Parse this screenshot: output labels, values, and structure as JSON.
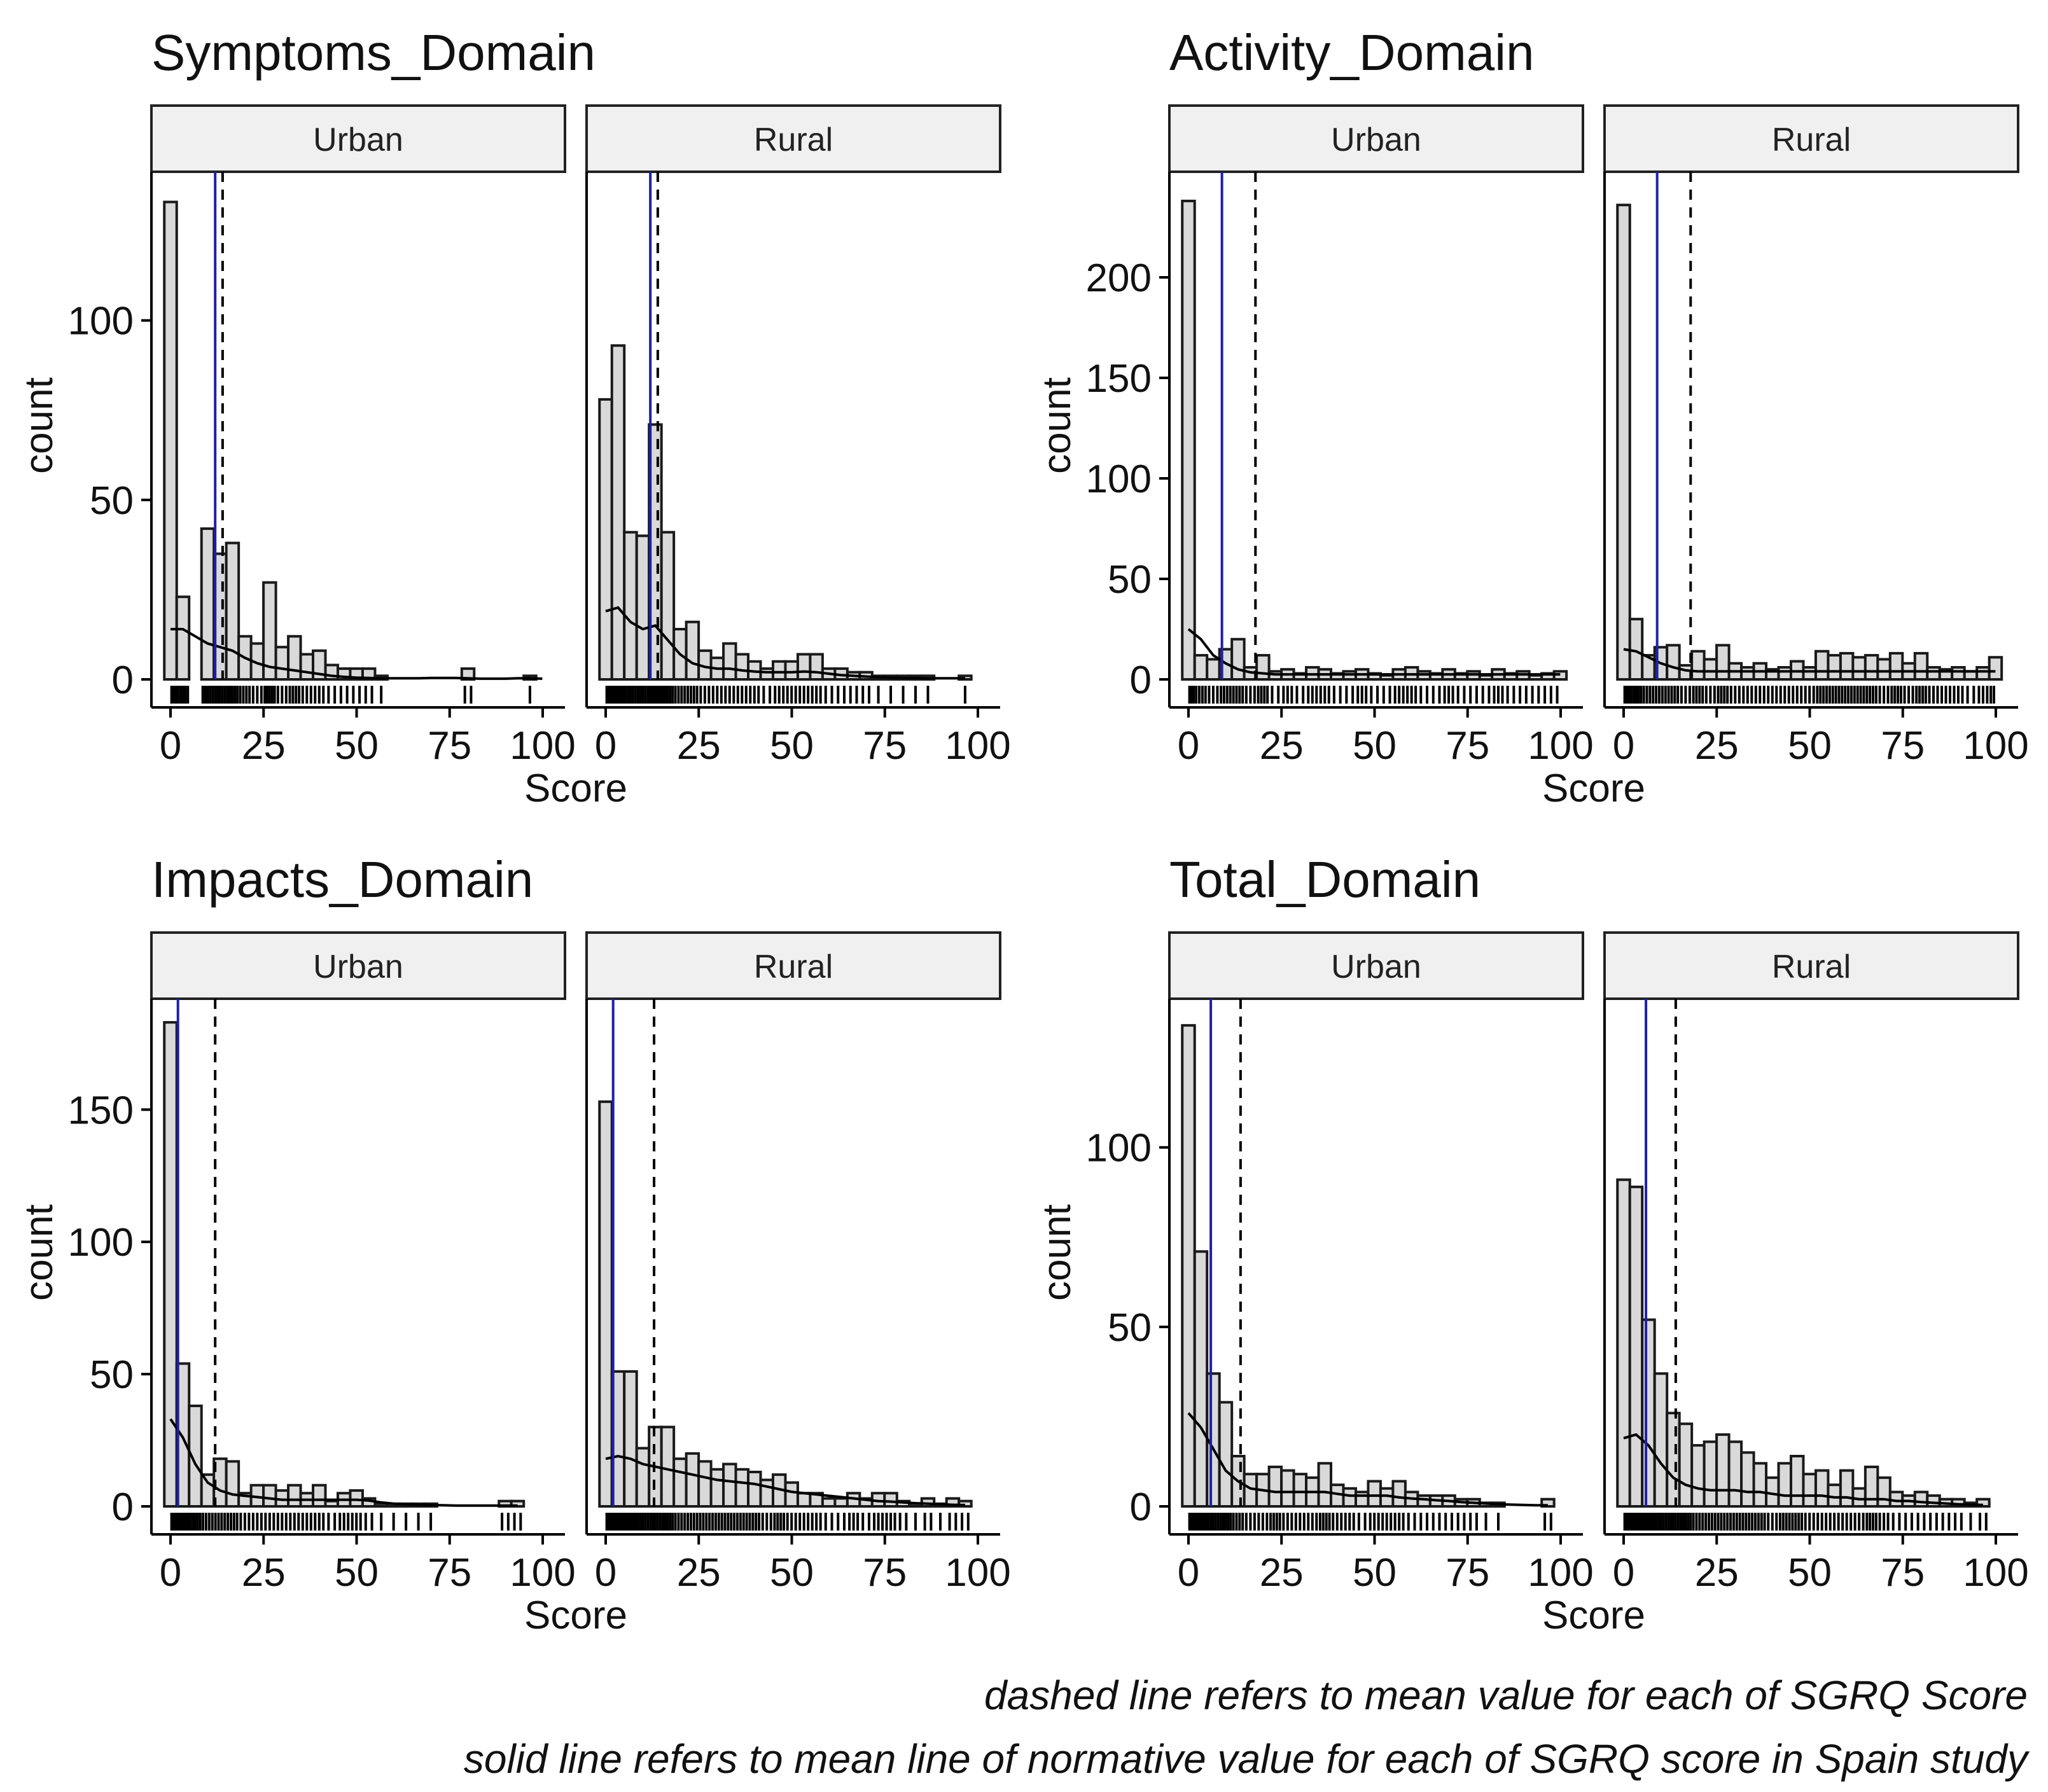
{
  "chart_data": [
    {
      "type": "bar",
      "title": "Symptoms_Domain",
      "xlabel": "Score",
      "ylabel": "count",
      "ylim": [
        0,
        140
      ],
      "yticks": [
        0,
        50,
        100
      ],
      "xticks": [
        0,
        25,
        50,
        75,
        100
      ],
      "panels": [
        {
          "label": "Urban",
          "bin_width": 3.33,
          "counts": [
            133,
            23,
            0,
            42,
            35,
            38,
            12,
            10,
            27,
            9,
            12,
            7,
            8,
            4,
            3,
            3,
            3,
            1,
            0,
            0,
            0,
            0,
            0,
            0,
            3,
            0,
            0,
            0,
            0,
            1,
            0
          ],
          "density": [
            14,
            14,
            12,
            10,
            9,
            8,
            6,
            4.5,
            3.5,
            3,
            2.5,
            2,
            1.5,
            1,
            0.7,
            0.5,
            0.4,
            0.3,
            0.3,
            0.3,
            0.3,
            0.4,
            0.4,
            0.4,
            0.3,
            0.2,
            0.2,
            0.2,
            0.3,
            0.3,
            0.2
          ],
          "norm_mean": 12,
          "mean": 14
        },
        {
          "label": "Rural",
          "bin_width": 3.33,
          "counts": [
            78,
            93,
            41,
            40,
            71,
            41,
            14,
            16,
            8,
            6,
            10,
            7,
            5,
            3,
            5,
            5,
            7,
            7,
            3,
            3,
            2,
            2,
            1,
            1,
            1,
            1,
            1,
            0,
            0,
            1
          ],
          "density": [
            19,
            20,
            16,
            14,
            15,
            11,
            7,
            4.5,
            3.5,
            3,
            3,
            2.5,
            2.2,
            2,
            2,
            2,
            2.2,
            2,
            1.6,
            1.2,
            1,
            0.8,
            0.6,
            0.5,
            0.4,
            0.4,
            0.3,
            0.3,
            0.3,
            0.3
          ],
          "norm_mean": 12,
          "mean": 14
        }
      ]
    },
    {
      "type": "bar",
      "title": "Activity_Domain",
      "xlabel": "Score",
      "ylabel": "count",
      "ylim": [
        0,
        250
      ],
      "yticks": [
        0,
        50,
        100,
        150,
        200
      ],
      "xticks": [
        0,
        25,
        50,
        75,
        100
      ],
      "panels": [
        {
          "label": "Urban",
          "bin_width": 3.33,
          "counts": [
            238,
            12,
            10,
            15,
            20,
            6,
            12,
            4,
            5,
            3,
            6,
            5,
            3,
            4,
            5,
            3,
            2,
            5,
            6,
            4,
            3,
            5,
            3,
            4,
            2,
            5,
            3,
            4,
            2,
            3,
            4
          ],
          "density": [
            25,
            20,
            12,
            8,
            5,
            3.5,
            3,
            2.5,
            2.5,
            2.5,
            2.5,
            2.5,
            2.5,
            2.5,
            2.5,
            2.5,
            2.5,
            2.5,
            2.5,
            2.5,
            2.5,
            2.5,
            2.5,
            2.5,
            2.5,
            2.5,
            2.5,
            2.5,
            2.5,
            2.5,
            2.5
          ],
          "norm_mean": 9,
          "mean": 18
        },
        {
          "label": "Rural",
          "bin_width": 3.33,
          "counts": [
            236,
            30,
            12,
            16,
            17,
            7,
            14,
            10,
            17,
            8,
            6,
            8,
            5,
            6,
            9,
            6,
            14,
            12,
            13,
            11,
            12,
            10,
            13,
            8,
            13,
            6,
            5,
            6,
            4,
            6,
            11
          ],
          "density": [
            15,
            14,
            11,
            8,
            6,
            4.5,
            4,
            4,
            4,
            4,
            4,
            4,
            4,
            4,
            4,
            4,
            4,
            4,
            4,
            4,
            4,
            4,
            4,
            4,
            4,
            4,
            4,
            4,
            4,
            4,
            4
          ],
          "norm_mean": 9,
          "mean": 18
        }
      ]
    },
    {
      "type": "bar",
      "title": "Impacts_Domain",
      "xlabel": "Score",
      "ylabel": "count",
      "ylim": [
        0,
        190
      ],
      "yticks": [
        0,
        50,
        100,
        150
      ],
      "xticks": [
        0,
        25,
        50,
        75,
        100
      ],
      "xticklabels": [
        "0",
        "25",
        "50",
        "75",
        "100"
      ],
      "panels": [
        {
          "label": "Urban",
          "bin_width": 3.33,
          "counts": [
            183,
            54,
            38,
            12,
            18,
            17,
            5,
            8,
            8,
            6,
            8,
            5,
            8,
            2,
            5,
            6,
            3,
            1,
            1,
            1,
            1,
            1,
            0,
            0,
            0,
            0,
            0,
            2,
            2
          ],
          "density": [
            33,
            26,
            16,
            9,
            6,
            4.5,
            4,
            3.5,
            3,
            2.5,
            2.5,
            2.5,
            2.5,
            2.5,
            2.5,
            2.5,
            2.2,
            1.5,
            1,
            0.8,
            0.6,
            0.5,
            0.4,
            0.3,
            0.3,
            0.3,
            0.3,
            0.3,
            0.3
          ],
          "norm_mean": 2,
          "mean": 12
        },
        {
          "label": "Rural",
          "bin_width": 3.33,
          "counts": [
            153,
            51,
            51,
            22,
            30,
            30,
            18,
            20,
            17,
            14,
            16,
            14,
            13,
            10,
            12,
            9,
            5,
            5,
            3,
            3,
            5,
            3,
            5,
            5,
            2,
            1,
            3,
            1,
            3,
            2
          ],
          "density": [
            18,
            19,
            18,
            16,
            15,
            14,
            13,
            12,
            11,
            10,
            9.5,
            9,
            8.5,
            7.5,
            6.5,
            5.5,
            5,
            4.5,
            4,
            3.5,
            3,
            2.5,
            2,
            1.8,
            1.5,
            1.2,
            1,
            0.8,
            0.6,
            0.5
          ],
          "norm_mean": 2,
          "mean": 13
        }
      ]
    },
    {
      "type": "bar",
      "title": "Total_Domain",
      "xlabel": "Score",
      "ylabel": "count",
      "ylim": [
        0,
        140
      ],
      "yticks": [
        0,
        50,
        100
      ],
      "xticks": [
        0,
        25,
        50,
        75,
        100
      ],
      "panels": [
        {
          "label": "Urban",
          "bin_width": 3.33,
          "counts": [
            134,
            71,
            37,
            29,
            14,
            9,
            9,
            11,
            10,
            9,
            8,
            12,
            6,
            5,
            4,
            7,
            5,
            7,
            4,
            3,
            3,
            3,
            2,
            2,
            1,
            1,
            0,
            0,
            0,
            2
          ],
          "density": [
            26,
            22,
            16,
            10,
            7,
            5,
            4.5,
            4,
            4,
            4,
            4,
            4,
            3.5,
            3,
            3,
            3,
            3,
            2.5,
            2.2,
            2,
            1.7,
            1.5,
            1.2,
            1,
            0.8,
            0.6,
            0.5,
            0.4,
            0.3,
            0.3
          ],
          "norm_mean": 6,
          "mean": 14
        },
        {
          "label": "Rural",
          "bin_width": 3.33,
          "counts": [
            91,
            89,
            52,
            37,
            26,
            23,
            17,
            18,
            20,
            18,
            15,
            12,
            8,
            12,
            14,
            9,
            10,
            6,
            10,
            5,
            11,
            8,
            4,
            3,
            4,
            3,
            2,
            2,
            1,
            2
          ],
          "density": [
            19,
            20,
            17,
            12,
            8,
            6,
            5,
            4.5,
            4.5,
            4.5,
            4,
            4,
            3.5,
            3,
            3,
            3,
            3,
            2.5,
            2.5,
            2,
            2,
            2,
            1.5,
            1.5,
            1.2,
            1,
            0.8,
            0.6,
            0.5,
            0.4
          ],
          "norm_mean": 6,
          "mean": 14
        }
      ]
    }
  ],
  "caption": {
    "line1": "dashed line refers to mean value for each of SGRQ Score",
    "line2": "solid line refers to mean line of normative value for each of SGRQ score in Spain study"
  },
  "colors": {
    "bar_fill": "#d9d9d9",
    "bar_stroke": "#1a1a1a",
    "strip_fill": "#f0f0f0",
    "norm_line": "#1f1fa8",
    "mean_line": "#000000",
    "density_line": "#000000"
  }
}
